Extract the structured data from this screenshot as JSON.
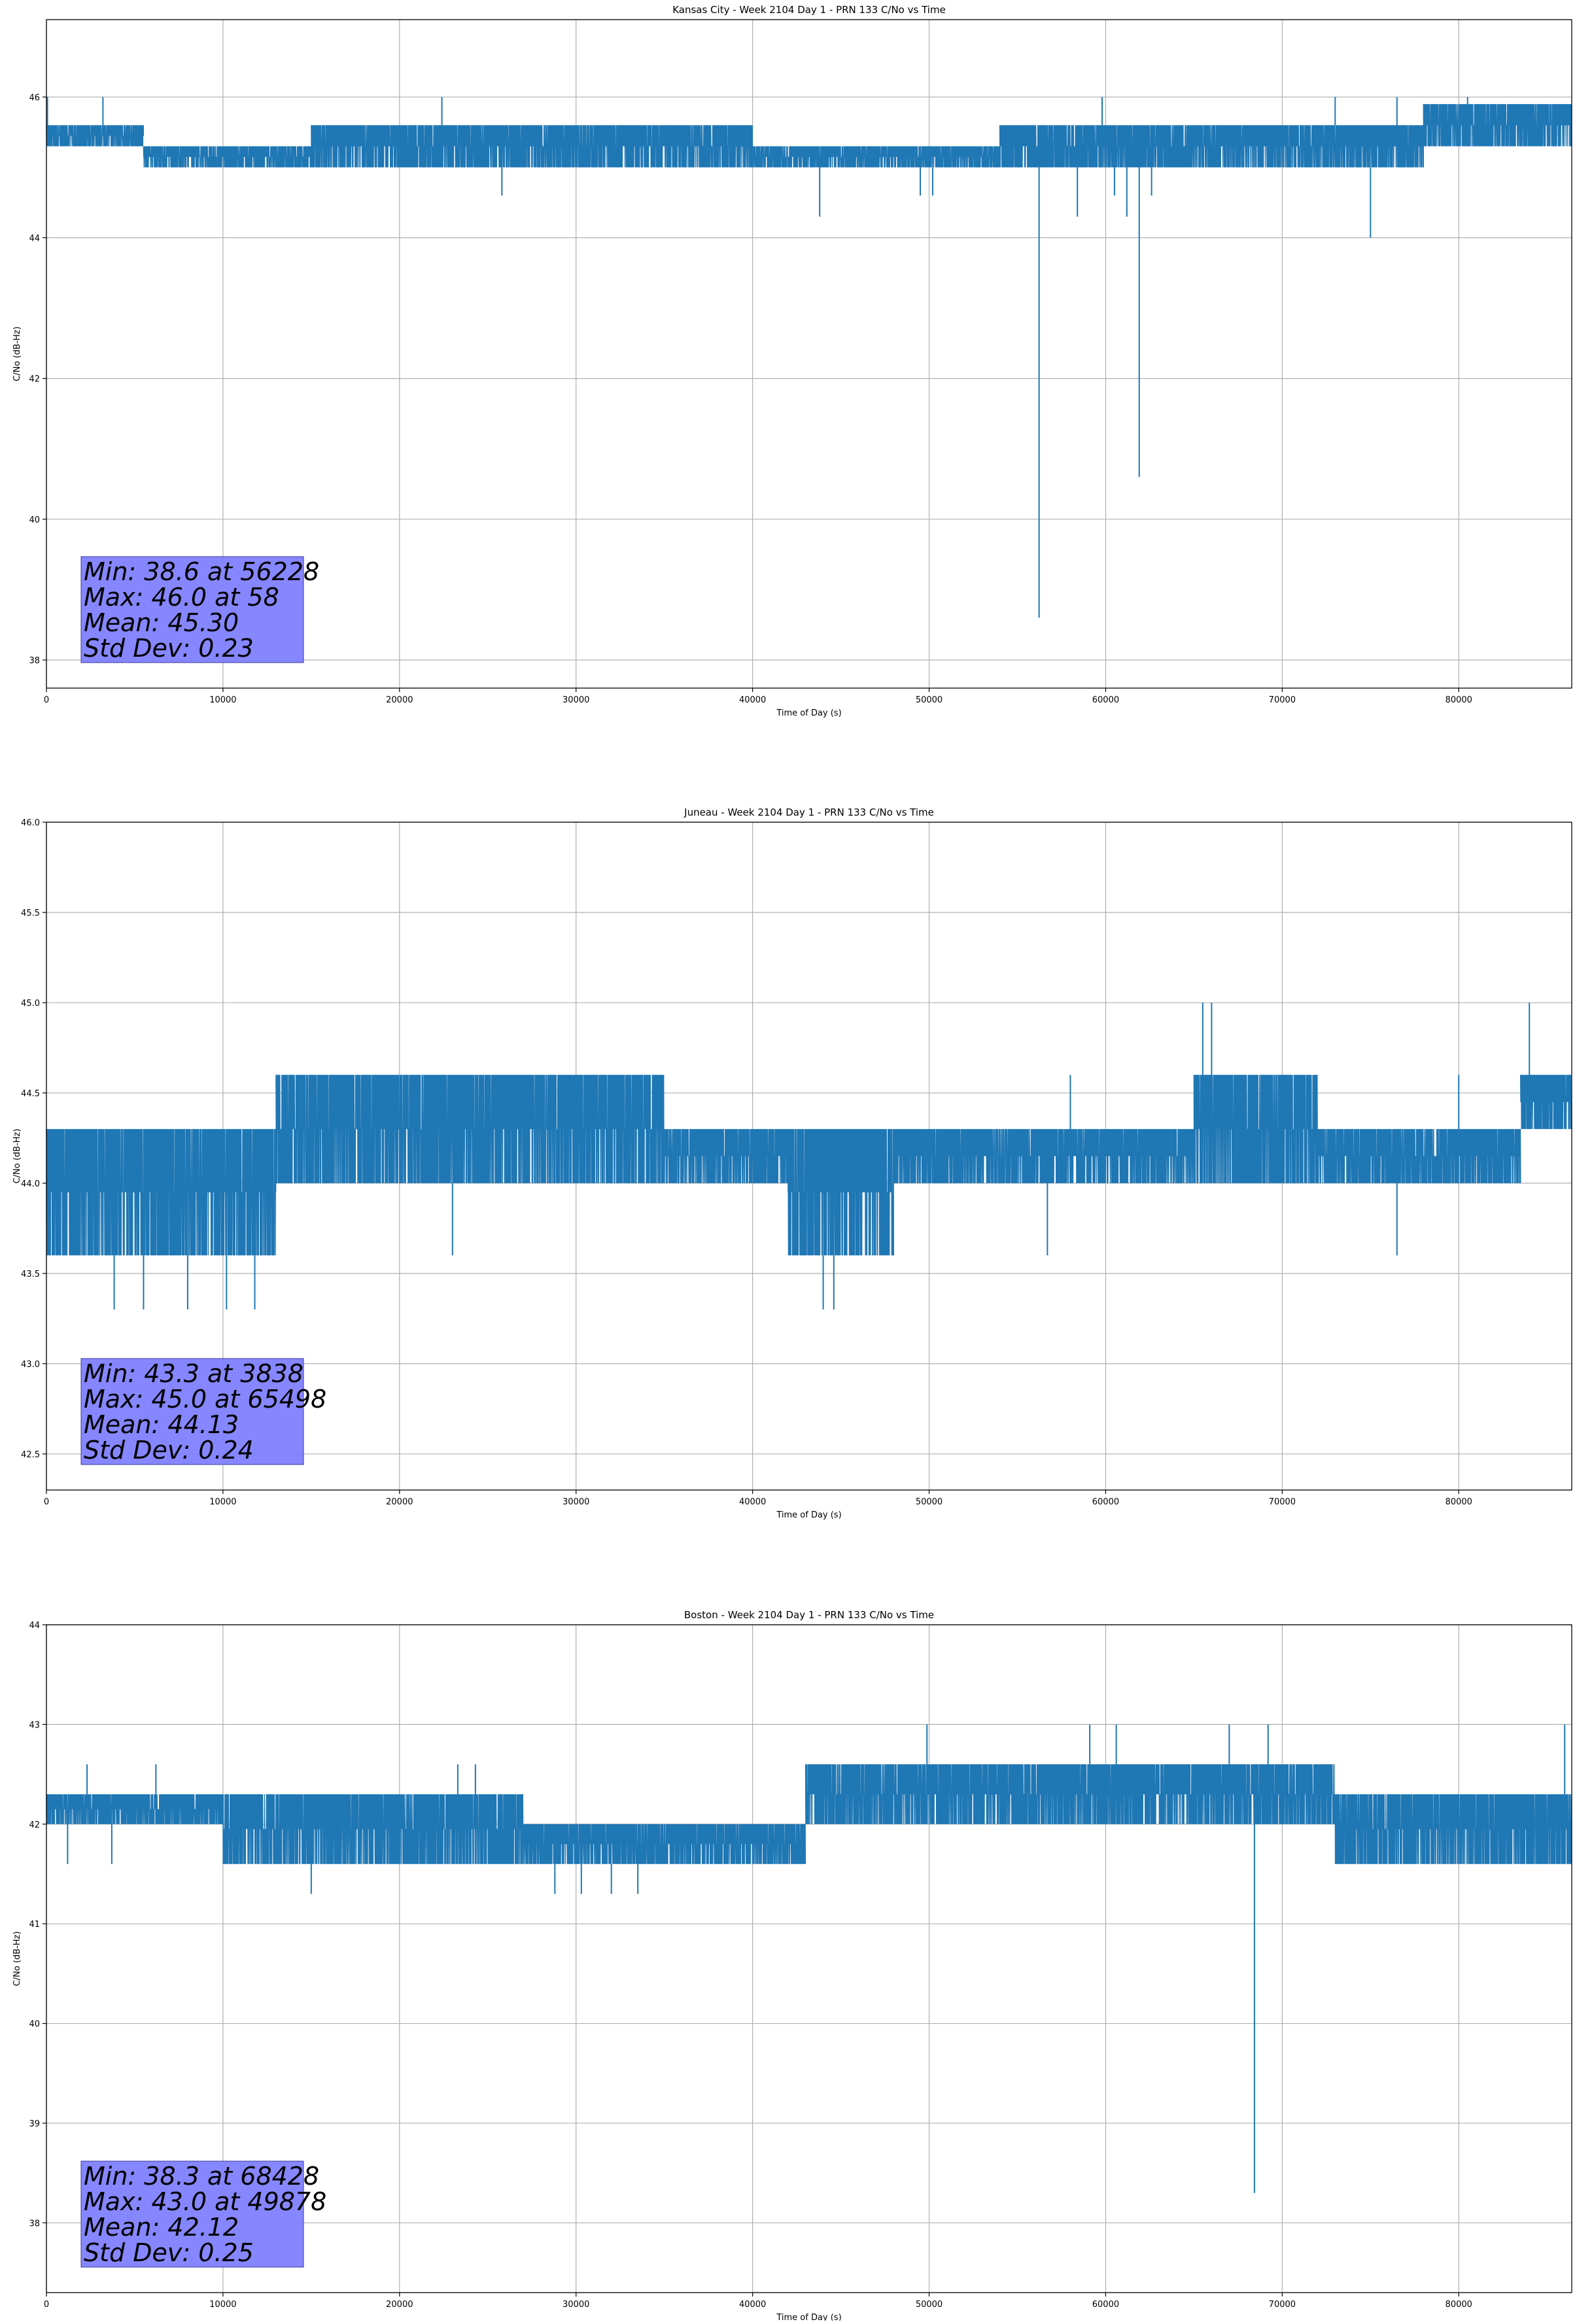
{
  "colors": {
    "line": "#1f77b4",
    "stats_box": "#8080ff",
    "grid": "#b0b0b0"
  },
  "chart_data": [
    {
      "type": "line",
      "title": "Kansas City - Week 2104 Day 1 - PRN 133 C/No vs Time",
      "xlabel": "Time of Day (s)",
      "ylabel": "C/No (dB-Hz)",
      "xlim": [
        0,
        86400
      ],
      "ylim": [
        37.6,
        47.1
      ],
      "xticks": [
        0,
        10000,
        20000,
        30000,
        40000,
        50000,
        60000,
        70000,
        80000
      ],
      "yticks": [
        38,
        40,
        42,
        44,
        46
      ],
      "grid": true,
      "bands": [
        {
          "x": [
            0,
            5500
          ],
          "lo": 45.3,
          "hi": 45.6
        },
        {
          "x": [
            5500,
            15000
          ],
          "lo": 45.0,
          "hi": 45.3
        },
        {
          "x": [
            15000,
            40000
          ],
          "lo": 45.0,
          "hi": 45.6
        },
        {
          "x": [
            40000,
            54000
          ],
          "lo": 45.0,
          "hi": 45.3
        },
        {
          "x": [
            54000,
            60500
          ],
          "lo": 45.0,
          "hi": 45.6
        },
        {
          "x": [
            60500,
            78000
          ],
          "lo": 45.0,
          "hi": 45.6
        },
        {
          "x": [
            78000,
            86400
          ],
          "lo": 45.3,
          "hi": 45.9
        }
      ],
      "spikes": [
        {
          "x": 56228,
          "y": 38.6
        },
        {
          "x": 61900,
          "y": 40.6
        },
        {
          "x": 75000,
          "y": 44.0
        },
        {
          "x": 58400,
          "y": 44.3
        },
        {
          "x": 60500,
          "y": 44.6
        },
        {
          "x": 25800,
          "y": 44.6
        },
        {
          "x": 43800,
          "y": 44.3
        },
        {
          "x": 49500,
          "y": 44.6
        },
        {
          "x": 50200,
          "y": 44.6
        },
        {
          "x": 61200,
          "y": 44.3
        },
        {
          "x": 62600,
          "y": 44.6
        },
        {
          "x": 58,
          "y": 46.0
        },
        {
          "x": 3200,
          "y": 46.0
        },
        {
          "x": 22400,
          "y": 46.0
        },
        {
          "x": 59800,
          "y": 46.0
        },
        {
          "x": 73000,
          "y": 46.0
        },
        {
          "x": 76500,
          "y": 46.0
        },
        {
          "x": 80500,
          "y": 46.0
        }
      ],
      "stats": [
        "Min: 38.6 at 56228",
        "Max: 46.0 at 58",
        "Mean: 45.30",
        "Std Dev: 0.23"
      ]
    },
    {
      "type": "line",
      "title": "Juneau - Week 2104 Day 1 - PRN 133 C/No vs Time",
      "xlabel": "Time of Day (s)",
      "ylabel": "C/No (dB-Hz)",
      "xlim": [
        0,
        86400
      ],
      "ylim": [
        42.3,
        46.0
      ],
      "xticks": [
        0,
        10000,
        20000,
        30000,
        40000,
        50000,
        60000,
        70000,
        80000
      ],
      "yticks": [
        42.5,
        43.0,
        43.5,
        44.0,
        44.5,
        45.0,
        45.5,
        46.0
      ],
      "grid": true,
      "bands": [
        {
          "x": [
            0,
            13000
          ],
          "lo": 43.6,
          "hi": 44.3
        },
        {
          "x": [
            13000,
            35000
          ],
          "lo": 44.0,
          "hi": 44.6
        },
        {
          "x": [
            35000,
            42000
          ],
          "lo": 44.0,
          "hi": 44.3
        },
        {
          "x": [
            42000,
            48000
          ],
          "lo": 43.6,
          "hi": 44.3
        },
        {
          "x": [
            48000,
            65000
          ],
          "lo": 44.0,
          "hi": 44.3
        },
        {
          "x": [
            65000,
            72000
          ],
          "lo": 44.0,
          "hi": 44.6
        },
        {
          "x": [
            72000,
            83500
          ],
          "lo": 44.0,
          "hi": 44.3
        },
        {
          "x": [
            83500,
            86400
          ],
          "lo": 44.3,
          "hi": 44.6
        }
      ],
      "spikes": [
        {
          "x": 3838,
          "y": 43.3
        },
        {
          "x": 5500,
          "y": 43.3
        },
        {
          "x": 8000,
          "y": 43.3
        },
        {
          "x": 10200,
          "y": 43.3
        },
        {
          "x": 11800,
          "y": 43.3
        },
        {
          "x": 44000,
          "y": 43.3
        },
        {
          "x": 44600,
          "y": 43.3
        },
        {
          "x": 65498,
          "y": 45.0
        },
        {
          "x": 66000,
          "y": 45.0
        },
        {
          "x": 84000,
          "y": 45.0
        },
        {
          "x": 15000,
          "y": 44.6
        },
        {
          "x": 6000,
          "y": 44.3
        },
        {
          "x": 56700,
          "y": 43.6
        },
        {
          "x": 58000,
          "y": 44.6
        },
        {
          "x": 76500,
          "y": 43.6
        },
        {
          "x": 80000,
          "y": 44.6
        },
        {
          "x": 23000,
          "y": 43.6
        },
        {
          "x": 29000,
          "y": 44.6
        }
      ],
      "stats": [
        "Min: 43.3 at 3838",
        "Max: 45.0 at 65498",
        "Mean: 44.13",
        "Std Dev: 0.24"
      ]
    },
    {
      "type": "line",
      "title": "Boston - Week 2104 Day 1 - PRN 133 C/No vs Time",
      "xlabel": "Time of Day (s)",
      "ylabel": "C/No (dB-Hz)",
      "xlim": [
        0,
        86400
      ],
      "ylim": [
        37.3,
        44.0
      ],
      "xticks": [
        0,
        10000,
        20000,
        30000,
        40000,
        50000,
        60000,
        70000,
        80000
      ],
      "yticks": [
        38,
        39,
        40,
        41,
        42,
        43,
        44
      ],
      "grid": true,
      "bands": [
        {
          "x": [
            0,
            10000
          ],
          "lo": 42.0,
          "hi": 42.3
        },
        {
          "x": [
            10000,
            27000
          ],
          "lo": 41.6,
          "hi": 42.3
        },
        {
          "x": [
            27000,
            43000
          ],
          "lo": 41.6,
          "hi": 42.0
        },
        {
          "x": [
            43000,
            59000
          ],
          "lo": 42.0,
          "hi": 42.6
        },
        {
          "x": [
            59000,
            73000
          ],
          "lo": 42.0,
          "hi": 42.6
        },
        {
          "x": [
            73000,
            86400
          ],
          "lo": 41.6,
          "hi": 42.3
        }
      ],
      "spikes": [
        {
          "x": 68428,
          "y": 38.3
        },
        {
          "x": 49878,
          "y": 43.0
        },
        {
          "x": 59100,
          "y": 43.0
        },
        {
          "x": 60600,
          "y": 43.0
        },
        {
          "x": 67000,
          "y": 43.0
        },
        {
          "x": 69200,
          "y": 43.0
        },
        {
          "x": 86000,
          "y": 43.0
        },
        {
          "x": 15000,
          "y": 41.3
        },
        {
          "x": 28800,
          "y": 41.3
        },
        {
          "x": 30300,
          "y": 41.3
        },
        {
          "x": 32000,
          "y": 41.3
        },
        {
          "x": 33500,
          "y": 41.3
        },
        {
          "x": 2300,
          "y": 42.6
        },
        {
          "x": 6200,
          "y": 42.6
        },
        {
          "x": 23300,
          "y": 42.6
        },
        {
          "x": 24300,
          "y": 42.6
        },
        {
          "x": 1200,
          "y": 41.6
        },
        {
          "x": 3700,
          "y": 41.6
        }
      ],
      "stats": [
        "Min: 38.3 at 68428",
        "Max: 43.0 at 49878",
        "Mean: 42.12",
        "Std Dev: 0.25"
      ]
    }
  ]
}
